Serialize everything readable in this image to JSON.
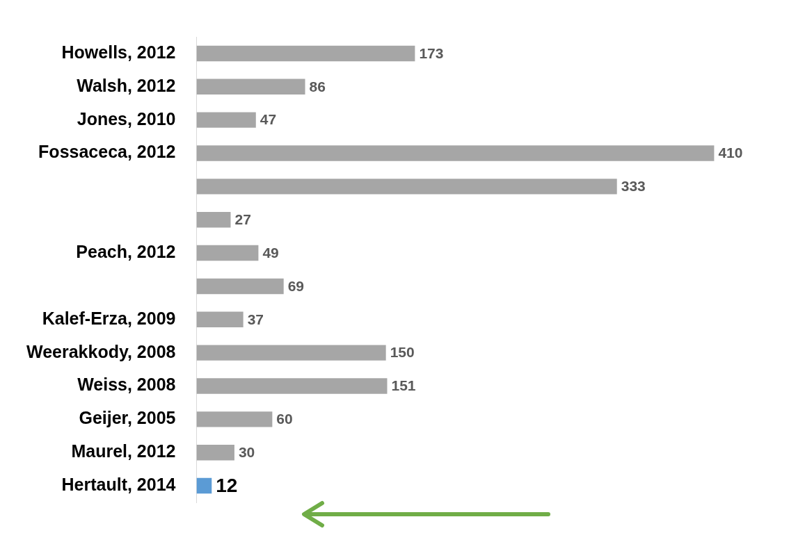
{
  "chart_data": {
    "type": "bar",
    "orientation": "horizontal",
    "categories": [
      "Howells, 2012",
      "Walsh, 2012",
      "Jones, 2010",
      "Fossaceca, 2012",
      null,
      null,
      "Peach, 2012",
      null,
      "Kalef-Erza, 2009",
      "Weerakkody, 2008",
      "Weiss, 2008",
      "Geijer, 2005",
      "Maurel, 2012",
      "Hertault, 2014"
    ],
    "values": [
      173,
      86,
      47,
      410,
      333,
      27,
      49,
      69,
      37,
      150,
      151,
      60,
      30,
      12
    ],
    "colors": [
      "#a6a6a6",
      "#a6a6a6",
      "#a6a6a6",
      "#a6a6a6",
      "#a6a6a6",
      "#a6a6a6",
      "#a6a6a6",
      "#a6a6a6",
      "#a6a6a6",
      "#a6a6a6",
      "#a6a6a6",
      "#a6a6a6",
      "#a6a6a6",
      "#5b9bd5"
    ],
    "data_labels": true,
    "grid": false,
    "legend": false,
    "tick_labels": "y"
  }
}
